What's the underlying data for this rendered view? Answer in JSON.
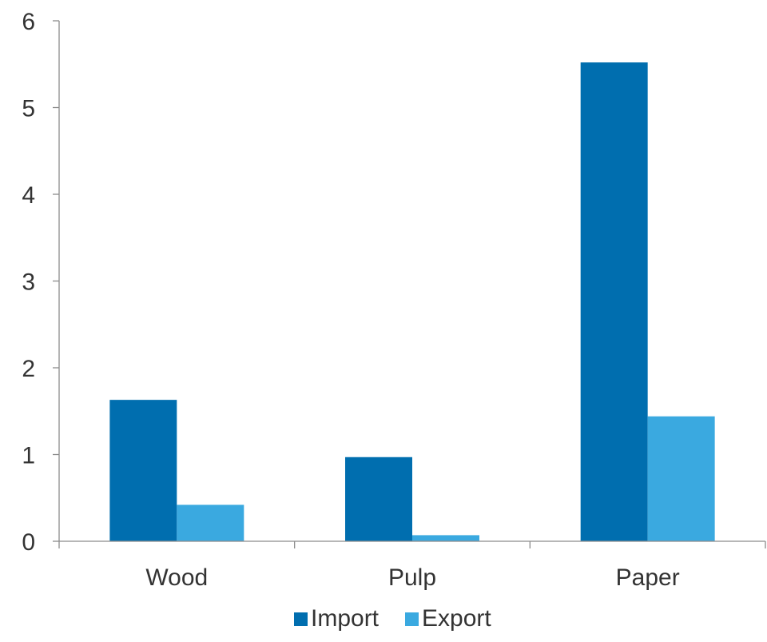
{
  "chart_data": {
    "type": "bar",
    "title": "",
    "xlabel": "",
    "ylabel": "",
    "categories": [
      "Wood",
      "Pulp",
      "Paper"
    ],
    "series": [
      {
        "name": "Import",
        "color": "#006EAF",
        "values": [
          1.63,
          0.97,
          5.52
        ]
      },
      {
        "name": "Export",
        "color": "#3AA9E0",
        "values": [
          0.42,
          0.07,
          1.44
        ]
      }
    ],
    "ylim": [
      0,
      6
    ],
    "yticks": [
      "0",
      "1",
      "2",
      "3",
      "4",
      "5",
      "6"
    ],
    "grid": false,
    "legend_position": "bottom"
  }
}
